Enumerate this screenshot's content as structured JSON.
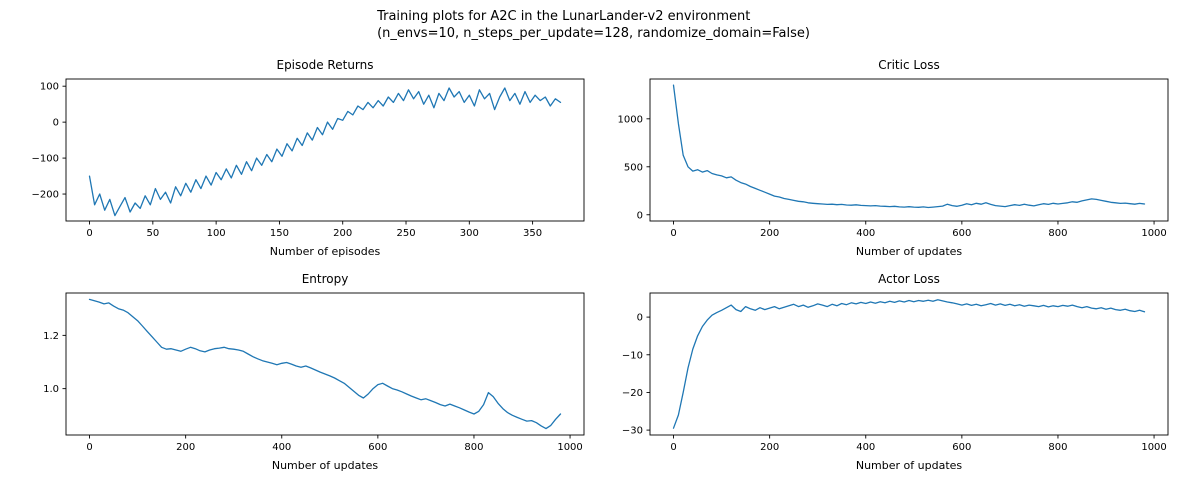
{
  "figure": {
    "title_line1": "Training plots for A2C in the LunarLander-v2 environment",
    "title_line2": "(n_envs=10, n_steps_per_update=128, randomize_domain=False)",
    "line_color": "#1f77b4",
    "frame_color": "#000000",
    "background_color": "#ffffff"
  },
  "chart_data": [
    {
      "id": "episode-returns",
      "type": "line",
      "title": "Episode Returns",
      "xlabel": "Number of episodes",
      "legend": "none",
      "grid": false,
      "x_start": 0,
      "x_step": 4,
      "values": [
        -150,
        -230,
        -200,
        -245,
        -215,
        -260,
        -235,
        -210,
        -250,
        -225,
        -240,
        -205,
        -230,
        -185,
        -215,
        -195,
        -225,
        -180,
        -205,
        -170,
        -195,
        -160,
        -185,
        -150,
        -175,
        -140,
        -160,
        -130,
        -155,
        -120,
        -145,
        -110,
        -135,
        -100,
        -120,
        -90,
        -110,
        -75,
        -95,
        -60,
        -80,
        -45,
        -65,
        -30,
        -50,
        -15,
        -35,
        0,
        -20,
        10,
        5,
        30,
        20,
        45,
        35,
        55,
        40,
        60,
        45,
        70,
        55,
        80,
        60,
        90,
        65,
        85,
        50,
        75,
        40,
        80,
        60,
        95,
        70,
        85,
        55,
        75,
        45,
        90,
        65,
        80,
        35,
        70,
        95,
        60,
        80,
        50,
        85,
        55,
        75,
        60,
        70,
        45,
        65,
        55
      ],
      "xlim": [
        -18.6,
        390.6
      ],
      "ylim": [
        -275,
        120
      ],
      "x_ticks": [
        {
          "v": 0,
          "label": "0"
        },
        {
          "v": 50,
          "label": "50"
        },
        {
          "v": 100,
          "label": "100"
        },
        {
          "v": 150,
          "label": "150"
        },
        {
          "v": 200,
          "label": "200"
        },
        {
          "v": 250,
          "label": "250"
        },
        {
          "v": 300,
          "label": "300"
        },
        {
          "v": 350,
          "label": "350"
        }
      ],
      "y_ticks": [
        {
          "v": -200,
          "label": "−200"
        },
        {
          "v": -100,
          "label": "−100"
        },
        {
          "v": 0,
          "label": "0"
        },
        {
          "v": 100,
          "label": "100"
        }
      ]
    },
    {
      "id": "critic-loss",
      "type": "line",
      "title": "Critic Loss",
      "xlabel": "Number of updates",
      "legend": "none",
      "grid": false,
      "x_start": 0,
      "x_step": 10,
      "values": [
        1350,
        950,
        620,
        500,
        455,
        470,
        445,
        460,
        430,
        415,
        405,
        385,
        395,
        360,
        335,
        320,
        295,
        275,
        255,
        235,
        215,
        195,
        185,
        170,
        160,
        150,
        140,
        135,
        125,
        120,
        115,
        112,
        108,
        110,
        105,
        108,
        102,
        100,
        104,
        98,
        95,
        92,
        96,
        90,
        88,
        85,
        88,
        82,
        80,
        84,
        80,
        78,
        82,
        76,
        80,
        85,
        90,
        110,
        95,
        88,
        100,
        115,
        105,
        120,
        110,
        125,
        108,
        95,
        90,
        85,
        95,
        105,
        98,
        110,
        100,
        92,
        105,
        115,
        108,
        120,
        112,
        118,
        125,
        135,
        130,
        145,
        155,
        165,
        160,
        150,
        140,
        130,
        125,
        118,
        122,
        115,
        110,
        118,
        112
      ],
      "xlim": [
        -49,
        1029
      ],
      "ylim": [
        -65,
        1415
      ],
      "x_ticks": [
        {
          "v": 0,
          "label": "0"
        },
        {
          "v": 200,
          "label": "200"
        },
        {
          "v": 400,
          "label": "400"
        },
        {
          "v": 600,
          "label": "600"
        },
        {
          "v": 800,
          "label": "800"
        },
        {
          "v": 1000,
          "label": "1000"
        }
      ],
      "y_ticks": [
        {
          "v": 0,
          "label": "0"
        },
        {
          "v": 500,
          "label": "500"
        },
        {
          "v": 1000,
          "label": "1000"
        }
      ]
    },
    {
      "id": "entropy",
      "type": "line",
      "title": "Entropy",
      "xlabel": "Number of updates",
      "legend": "none",
      "grid": false,
      "x_start": 0,
      "x_step": 10,
      "values": [
        1.335,
        1.33,
        1.325,
        1.318,
        1.322,
        1.31,
        1.3,
        1.295,
        1.285,
        1.27,
        1.255,
        1.235,
        1.215,
        1.195,
        1.175,
        1.155,
        1.148,
        1.15,
        1.145,
        1.14,
        1.148,
        1.155,
        1.15,
        1.142,
        1.138,
        1.145,
        1.15,
        1.152,
        1.155,
        1.15,
        1.148,
        1.145,
        1.14,
        1.13,
        1.12,
        1.112,
        1.105,
        1.1,
        1.095,
        1.09,
        1.095,
        1.098,
        1.092,
        1.085,
        1.08,
        1.085,
        1.078,
        1.07,
        1.062,
        1.055,
        1.048,
        1.04,
        1.03,
        1.02,
        1.005,
        0.99,
        0.975,
        0.965,
        0.98,
        1.0,
        1.015,
        1.02,
        1.01,
        1.0,
        0.995,
        0.988,
        0.98,
        0.972,
        0.965,
        0.958,
        0.962,
        0.955,
        0.948,
        0.94,
        0.935,
        0.942,
        0.935,
        0.928,
        0.92,
        0.912,
        0.905,
        0.915,
        0.94,
        0.985,
        0.97,
        0.945,
        0.925,
        0.91,
        0.9,
        0.892,
        0.885,
        0.878,
        0.88,
        0.872,
        0.86,
        0.85,
        0.862,
        0.885,
        0.905
      ],
      "xlim": [
        -49,
        1029
      ],
      "ylim": [
        0.826,
        1.359
      ],
      "x_ticks": [
        {
          "v": 0,
          "label": "0"
        },
        {
          "v": 200,
          "label": "200"
        },
        {
          "v": 400,
          "label": "400"
        },
        {
          "v": 600,
          "label": "600"
        },
        {
          "v": 800,
          "label": "800"
        },
        {
          "v": 1000,
          "label": "1000"
        }
      ],
      "y_ticks": [
        {
          "v": 1.0,
          "label": "1.0"
        },
        {
          "v": 1.2,
          "label": "1.2"
        }
      ]
    },
    {
      "id": "actor-loss",
      "type": "line",
      "title": "Actor Loss",
      "xlabel": "Number of updates",
      "legend": "none",
      "grid": false,
      "x_start": 0,
      "x_step": 10,
      "values": [
        -29.5,
        -26.0,
        -20.0,
        -13.5,
        -8.5,
        -5.0,
        -2.5,
        -0.8,
        0.5,
        1.2,
        1.8,
        2.5,
        3.2,
        2.0,
        1.5,
        2.8,
        2.2,
        1.8,
        2.5,
        2.0,
        2.4,
        2.8,
        2.2,
        2.6,
        3.0,
        3.4,
        2.8,
        3.2,
        2.6,
        3.0,
        3.5,
        3.2,
        2.8,
        3.4,
        3.0,
        3.6,
        3.3,
        3.8,
        3.5,
        3.9,
        3.6,
        4.0,
        3.7,
        4.1,
        3.8,
        4.2,
        3.9,
        4.3,
        4.0,
        4.4,
        4.1,
        4.4,
        4.2,
        4.5,
        4.2,
        4.6,
        4.3,
        4.0,
        3.8,
        3.5,
        3.2,
        3.5,
        3.1,
        3.4,
        3.0,
        3.3,
        3.6,
        3.2,
        3.5,
        3.1,
        3.4,
        3.0,
        3.3,
        2.9,
        3.2,
        3.0,
        2.8,
        3.1,
        2.7,
        3.0,
        2.8,
        3.1,
        2.9,
        3.2,
        2.8,
        2.5,
        2.8,
        2.4,
        2.2,
        2.5,
        2.1,
        2.4,
        2.0,
        1.8,
        2.1,
        1.7,
        1.5,
        1.8,
        1.4
      ],
      "xlim": [
        -49,
        1029
      ],
      "ylim": [
        -31.3,
        6.4
      ],
      "x_ticks": [
        {
          "v": 0,
          "label": "0"
        },
        {
          "v": 200,
          "label": "200"
        },
        {
          "v": 400,
          "label": "400"
        },
        {
          "v": 600,
          "label": "600"
        },
        {
          "v": 800,
          "label": "800"
        },
        {
          "v": 1000,
          "label": "1000"
        }
      ],
      "y_ticks": [
        {
          "v": -30,
          "label": "−30"
        },
        {
          "v": -20,
          "label": "−20"
        },
        {
          "v": -10,
          "label": "−10"
        },
        {
          "v": 0,
          "label": "0"
        }
      ]
    }
  ]
}
